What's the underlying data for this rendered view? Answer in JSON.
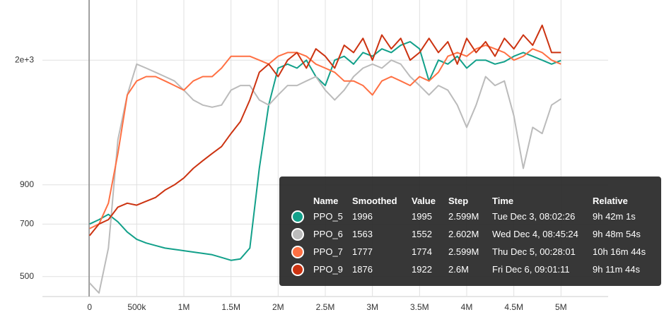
{
  "chart_data": {
    "type": "line",
    "yscale": "log",
    "grid": true,
    "x": [
      0,
      100000,
      200000,
      300000,
      400000,
      500000,
      600000,
      700000,
      800000,
      900000,
      1000000,
      1100000,
      1200000,
      1300000,
      1400000,
      1500000,
      1600000,
      1700000,
      1800000,
      1900000,
      2000000,
      2100000,
      2200000,
      2300000,
      2400000,
      2500000,
      2600000,
      2700000,
      2800000,
      2900000,
      3000000,
      3100000,
      3200000,
      3300000,
      3400000,
      3500000,
      3600000,
      3700000,
      3800000,
      3900000,
      4000000,
      4100000,
      4200000,
      4300000,
      4400000,
      4500000,
      4600000,
      4700000,
      4800000,
      4900000,
      5000000
    ],
    "xlim": [
      -500000,
      5500000
    ],
    "xticks": [
      0,
      {
        "value": 500000,
        "label": "500k"
      },
      {
        "value": 1000000,
        "label": "1M"
      },
      {
        "value": 1500000,
        "label": "1.5M"
      },
      {
        "value": 2000000,
        "label": "2M"
      },
      {
        "value": 2500000,
        "label": "2.5M"
      },
      {
        "value": 3000000,
        "label": "3M"
      },
      {
        "value": 3500000,
        "label": "3.5M"
      },
      {
        "value": 4000000,
        "label": "4M"
      },
      {
        "value": 4500000,
        "label": "4.5M"
      },
      {
        "value": 5000000,
        "label": "5M"
      }
    ],
    "ylim": [
      440,
      2940
    ],
    "yticks": [
      500,
      700,
      900,
      {
        "value": 2000,
        "label": "2e+3"
      }
    ],
    "series": [
      {
        "name": "PPO_5",
        "color": "#12a08a",
        "values": [
          700,
          720,
          745,
          710,
          665,
          635,
          620,
          610,
          600,
          595,
          590,
          585,
          580,
          575,
          565,
          555,
          560,
          600,
          1000,
          1500,
          1900,
          1950,
          1900,
          2000,
          1800,
          1700,
          2000,
          2050,
          1950,
          2100,
          2050,
          2150,
          2100,
          2200,
          2250,
          2150,
          1750,
          2000,
          1950,
          2050,
          1900,
          2000,
          2000,
          1950,
          1980,
          2050,
          2100,
          2050,
          2000,
          1950,
          1995
        ]
      },
      {
        "name": "PPO_6",
        "color": "#bbbbbb",
        "values": [
          480,
          450,
          600,
          1200,
          1600,
          1950,
          1900,
          1850,
          1800,
          1750,
          1650,
          1550,
          1500,
          1480,
          1500,
          1650,
          1700,
          1700,
          1550,
          1500,
          1600,
          1700,
          1700,
          1750,
          1800,
          1650,
          1550,
          1650,
          1800,
          1900,
          1950,
          1900,
          2000,
          1950,
          1800,
          1700,
          1600,
          1700,
          1650,
          1500,
          1300,
          1500,
          1800,
          1700,
          1750,
          1400,
          1000,
          1300,
          1250,
          1500,
          1560
        ]
      },
      {
        "name": "PPO_7",
        "color": "#ff7043",
        "values": [
          680,
          700,
          800,
          1100,
          1600,
          1750,
          1800,
          1800,
          1750,
          1700,
          1650,
          1750,
          1800,
          1800,
          1900,
          2050,
          2050,
          2050,
          2000,
          1950,
          2050,
          2100,
          2100,
          2050,
          1950,
          1900,
          1850,
          1750,
          1750,
          1700,
          1600,
          1750,
          1800,
          1750,
          1700,
          1800,
          1750,
          1850,
          2050,
          2100,
          2050,
          2150,
          2200,
          2150,
          2100,
          2000,
          2050,
          2150,
          2100,
          2000,
          1950
        ]
      },
      {
        "name": "PPO_9",
        "color": "#cc3311",
        "values": [
          650,
          700,
          720,
          780,
          800,
          790,
          810,
          830,
          870,
          900,
          940,
          1000,
          1050,
          1100,
          1150,
          1250,
          1350,
          1550,
          1850,
          1950,
          1800,
          2000,
          2100,
          1900,
          2150,
          2050,
          1900,
          2200,
          2100,
          2300,
          2000,
          2350,
          2150,
          2300,
          2000,
          2100,
          2300,
          2100,
          2250,
          1950,
          2300,
          2100,
          2250,
          2050,
          2300,
          2150,
          2350,
          2200,
          2500,
          2100,
          2100
        ]
      }
    ]
  },
  "tooltip": {
    "columns": [
      "Name",
      "Smoothed",
      "Value",
      "Step",
      "Time",
      "Relative"
    ],
    "rows": [
      [
        1996,
        1995,
        "2.599M",
        "Tue Dec 3, 08:02:26",
        "9h 42m 1s"
      ],
      [
        1563,
        1552,
        "2.602M",
        "Wed Dec 4, 08:45:24",
        "9h 48m 54s"
      ],
      [
        1777,
        1774,
        "2.599M",
        "Thu Dec 5, 00:28:01",
        "10h 16m 44s"
      ],
      [
        1876,
        1922,
        "2.6M",
        "Fri Dec 6, 09:01:11",
        "9h 11m 44s"
      ]
    ]
  }
}
